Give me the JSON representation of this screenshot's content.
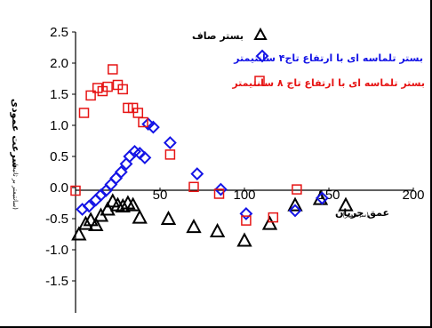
{
  "chart_data": {
    "type": "scatter",
    "xlabel": "عمق جریان",
    "xlabel_unit": "(سانتیمتر)",
    "ylabel": "سرعت عمودی",
    "ylabel_unit": "(سانتیمتر بر ثانیه)",
    "xlim": [
      0,
      200
    ],
    "ylim": [
      -2.0,
      2.5
    ],
    "x_ticks": [
      "50",
      "100",
      "150",
      "200"
    ],
    "y_ticks": [
      "2.5",
      "2.0",
      "1.5",
      "1.0",
      "0.5",
      "0.0",
      "-0.5",
      "-1.0",
      "-1.5"
    ],
    "grid": false,
    "legend_position": "top-right",
    "series": [
      {
        "name": "بستر صاف",
        "marker": "triangle",
        "color": "#000000",
        "points": [
          [
            2,
            -0.75
          ],
          [
            6,
            -0.58
          ],
          [
            9,
            -0.52
          ],
          [
            12,
            -0.6
          ],
          [
            15,
            -0.45
          ],
          [
            19,
            -0.35
          ],
          [
            22,
            -0.22
          ],
          [
            25,
            -0.28
          ],
          [
            28,
            -0.3
          ],
          [
            31,
            -0.25
          ],
          [
            34,
            -0.28
          ],
          [
            38,
            -0.48
          ],
          [
            55,
            -0.5
          ],
          [
            70,
            -0.63
          ],
          [
            84,
            -0.7
          ],
          [
            100,
            -0.85
          ],
          [
            115,
            -0.58
          ],
          [
            130,
            -0.28
          ],
          [
            145,
            -0.18
          ],
          [
            160,
            -0.28
          ]
        ]
      },
      {
        "name": "بستر تلماسه ای با ارتفاع تاج۴ سانتیمتر",
        "marker": "diamond",
        "color": "#1414e6",
        "points": [
          [
            4,
            -0.35
          ],
          [
            8,
            -0.3
          ],
          [
            12,
            -0.2
          ],
          [
            15,
            -0.12
          ],
          [
            18,
            -0.05
          ],
          [
            21,
            0.05
          ],
          [
            24,
            0.15
          ],
          [
            27,
            0.25
          ],
          [
            30,
            0.38
          ],
          [
            32,
            0.5
          ],
          [
            35,
            0.58
          ],
          [
            38,
            0.55
          ],
          [
            41,
            0.48
          ],
          [
            43,
            1.02
          ],
          [
            46,
            0.97
          ],
          [
            56,
            0.72
          ],
          [
            72,
            0.22
          ],
          [
            86,
            -0.03
          ],
          [
            101,
            -0.42
          ],
          [
            130,
            -0.37
          ],
          [
            146,
            -0.17
          ]
        ]
      },
      {
        "name": "بستر تلماسه ای با ارتفاع تاج ۸ سانتیمتر",
        "marker": "square",
        "color": "#e61414",
        "points": [
          [
            0,
            -0.05
          ],
          [
            5,
            1.2
          ],
          [
            9,
            1.48
          ],
          [
            13,
            1.6
          ],
          [
            16,
            1.55
          ],
          [
            19,
            1.62
          ],
          [
            22,
            1.9
          ],
          [
            25,
            1.65
          ],
          [
            28,
            1.58
          ],
          [
            31,
            1.28
          ],
          [
            34,
            1.28
          ],
          [
            37,
            1.2
          ],
          [
            40,
            1.05
          ],
          [
            56,
            0.53
          ],
          [
            70,
            0.01
          ],
          [
            85,
            -0.1
          ],
          [
            101,
            -0.53
          ],
          [
            117,
            -0.48
          ],
          [
            131,
            -0.03
          ]
        ]
      }
    ]
  }
}
